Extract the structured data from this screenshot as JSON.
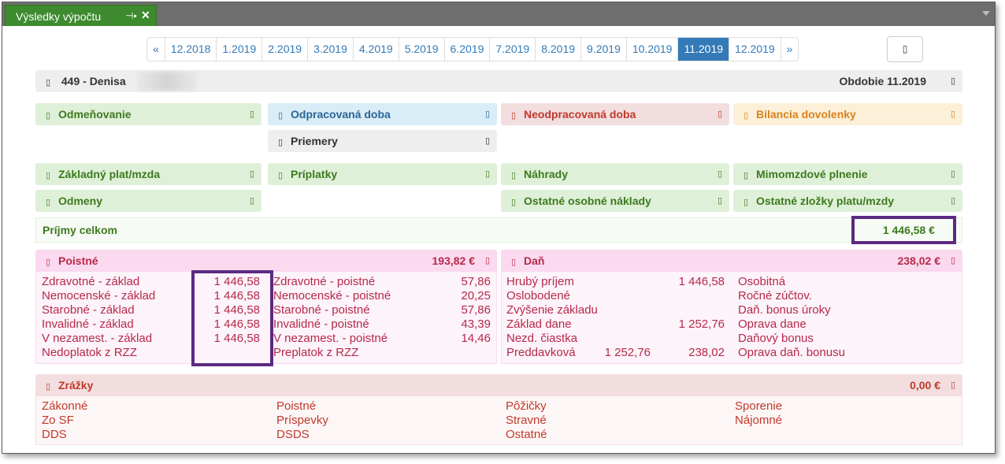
{
  "window": {
    "tab_title": "Výsledky výpočtu",
    "pin_glyph": "⊣▪",
    "close_glyph": "✕"
  },
  "pager": {
    "prev": "«",
    "months": [
      "12.2018",
      "1.2019",
      "2.2019",
      "3.2019",
      "4.2019",
      "5.2019",
      "6.2019",
      "7.2019",
      "8.2019",
      "9.2019",
      "10.2019",
      "11.2019",
      "12.2019"
    ],
    "active": "11.2019",
    "next": "»"
  },
  "icon_glyph": "▯",
  "employee": {
    "label": "449 - Denisa",
    "period": "Obdobie 11.2019"
  },
  "sections": {
    "odmenovanie": "Odmeňovanie",
    "odpracovana": "Odpracovaná doba",
    "neodpracovana": "Neodpracovaná doba",
    "bilancia": "Bilancia dovolenky",
    "priemery": "Priemery",
    "zakladny": "Základný plat/mzda",
    "priplatky": "Príplatky",
    "nahrady": "Náhrady",
    "mimomzdove": "Mimomzdové plnenie",
    "odmeny": "Odmeny",
    "ostatne_naklady": "Ostatné osobné náklady",
    "ostatne_zlozky": "Ostatné zložky platu/mzdy"
  },
  "income": {
    "label": "Príjmy celkom",
    "value": "1 446,58 €"
  },
  "poistne": {
    "title": "Poistné",
    "total": "193,82 €",
    "left": [
      {
        "label": "Zdravotné - základ",
        "value": "1 446,58"
      },
      {
        "label": "Nemocenské - základ",
        "value": "1 446,58"
      },
      {
        "label": "Starobné - základ",
        "value": "1 446,58"
      },
      {
        "label": "Invalidné - základ",
        "value": "1 446,58"
      },
      {
        "label": "V nezamest. - základ",
        "value": "1 446,58"
      },
      {
        "label": "Nedoplatok z RZZ",
        "value": ""
      }
    ],
    "right": [
      {
        "label": "Zdravotné - poistné",
        "value": "57,86"
      },
      {
        "label": "Nemocenské - poistné",
        "value": "20,25"
      },
      {
        "label": "Starobné - poistné",
        "value": "57,86"
      },
      {
        "label": "Invalidné - poistné",
        "value": "43,39"
      },
      {
        "label": "V nezamest. - poistné",
        "value": "14,46"
      },
      {
        "label": "Preplatok z RZZ",
        "value": ""
      }
    ]
  },
  "dan": {
    "title": "Daň",
    "total": "238,02 €",
    "left": [
      {
        "label": "Hrubý príjem",
        "value": "1 446,58"
      },
      {
        "label": "Oslobodené",
        "value": ""
      },
      {
        "label": "Zvýšenie základu",
        "value": ""
      },
      {
        "label": "Základ dane",
        "value": "1 252,76"
      },
      {
        "label": "Nezd. čiastka",
        "value": ""
      }
    ],
    "preddavkova": {
      "label": "Preddavková",
      "base": "1 252,76",
      "value": "238,02"
    },
    "right": [
      "Osobitná",
      "Ročné zúčtov.",
      "Daň. bonus úroky",
      "Oprava dane",
      "Daňový bonus",
      "Oprava daň. bonusu"
    ]
  },
  "zrazky": {
    "title": "Zrážky",
    "total": "0,00 €",
    "col1": [
      "Zákonné",
      "Zo SF",
      "DDS"
    ],
    "col2": [
      "Poistné",
      "Príspevky",
      "DSDS"
    ],
    "col3": [
      "Pôžičky",
      "Stravné",
      "Ostatné"
    ],
    "col4": [
      "Sporenie",
      "Nájomné"
    ]
  },
  "colors": {
    "tab": "#3d8b2e",
    "pager_active": "#337ab7",
    "highlight": "#5b2a82"
  }
}
